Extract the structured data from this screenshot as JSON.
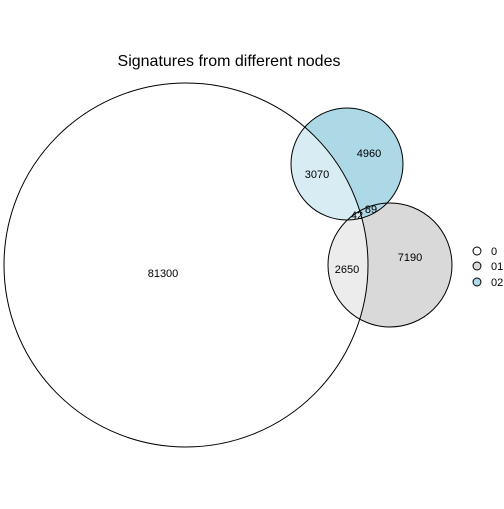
{
  "title": "Signatures from different nodes",
  "sets": [
    {
      "name": "0",
      "color": "#ffffff"
    },
    {
      "name": "01",
      "color": "#d9d9d9"
    },
    {
      "name": "02",
      "color": "#add8e6"
    }
  ],
  "regions": {
    "only_0": "81300",
    "only_01": "7190",
    "only_02": "4960",
    "0_and_01": "2650",
    "0_and_02": "3070",
    "01_and_02": "89",
    "all_three": "42"
  },
  "colors": {
    "overlap_0_01": "#ececec",
    "overlap_0_02": "#d7ecf3",
    "outline": "#000000"
  }
}
